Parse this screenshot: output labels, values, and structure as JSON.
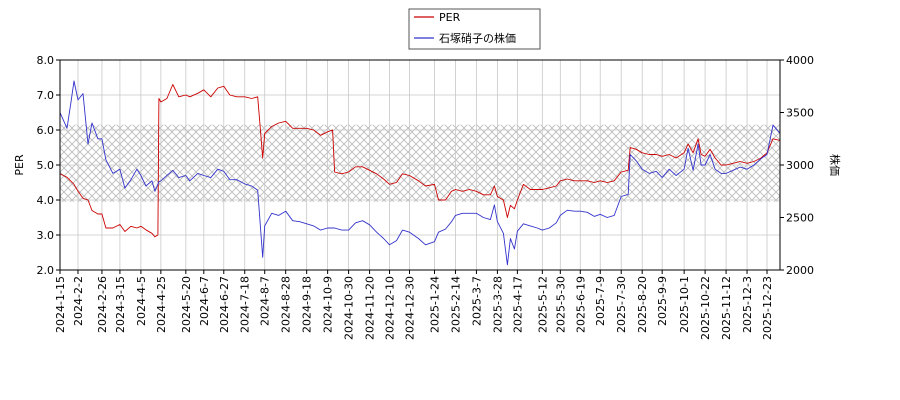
{
  "chart_data": {
    "type": "line",
    "legend": {
      "placement": "top-center",
      "entries": [
        {
          "name": "PER",
          "color": "#cc0000"
        },
        {
          "name": "石塚硝子の株価",
          "color": "#3333cc"
        }
      ]
    },
    "left_axis": {
      "label": "PER",
      "ylim": [
        2.0,
        8.0
      ],
      "ticks": [
        "2.0",
        "3.0",
        "4.0",
        "5.0",
        "6.0",
        "7.0",
        "8.0"
      ]
    },
    "right_axis": {
      "label": "株価",
      "ylim": [
        2000,
        4000
      ],
      "ticks": [
        "2000",
        "2500",
        "3000",
        "3500",
        "4000"
      ]
    },
    "x_axis": {
      "start": "2024-01-15",
      "end": "2026-01-05",
      "tick_labels": [
        "2024-1-15",
        "2024-2-2",
        "2024-2-26",
        "2024-3-15",
        "2024-4-5",
        "2024-4-25",
        "2024-5-20",
        "2024-6-7",
        "2024-6-27",
        "2024-7-18",
        "2024-8-7",
        "2024-8-28",
        "2024-9-18",
        "2024-10-9",
        "2024-10-30",
        "2024-11-20",
        "2024-12-10",
        "2024-12-30",
        "2025-1-24",
        "2025-2-14",
        "2025-3-7",
        "2025-3-28",
        "2025-4-17",
        "2025-5-12",
        "2025-5-30",
        "2025-6-19",
        "2025-7-9",
        "2025-7-30",
        "2025-8-20",
        "2025-9-9",
        "2025-10-1",
        "2025-10-22",
        "2025-11-12",
        "2025-12-3",
        "2025-12-23"
      ]
    },
    "band": {
      "ymin": 3.95,
      "ymax": 6.15,
      "pattern": "crosshatch"
    },
    "grid": true,
    "series": [
      {
        "name": "PER",
        "axis": "left",
        "color": "#cc0000",
        "points": [
          [
            "2024-01-15",
            4.75
          ],
          [
            "2024-01-22",
            4.65
          ],
          [
            "2024-01-29",
            4.45
          ],
          [
            "2024-02-02",
            4.25
          ],
          [
            "2024-02-07",
            4.05
          ],
          [
            "2024-02-12",
            4.0
          ],
          [
            "2024-02-16",
            3.7
          ],
          [
            "2024-02-22",
            3.6
          ],
          [
            "2024-02-26",
            3.6
          ],
          [
            "2024-03-01",
            3.2
          ],
          [
            "2024-03-08",
            3.2
          ],
          [
            "2024-03-15",
            3.3
          ],
          [
            "2024-03-20",
            3.1
          ],
          [
            "2024-03-26",
            3.25
          ],
          [
            "2024-04-01",
            3.2
          ],
          [
            "2024-04-05",
            3.25
          ],
          [
            "2024-04-10",
            3.15
          ],
          [
            "2024-04-16",
            3.05
          ],
          [
            "2024-04-19",
            2.95
          ],
          [
            "2024-04-22",
            3.0
          ],
          [
            "2024-04-23",
            6.9
          ],
          [
            "2024-04-25",
            6.8
          ],
          [
            "2024-05-01",
            6.9
          ],
          [
            "2024-05-07",
            7.3
          ],
          [
            "2024-05-13",
            6.95
          ],
          [
            "2024-05-20",
            7.0
          ],
          [
            "2024-05-24",
            6.95
          ],
          [
            "2024-06-01",
            7.05
          ],
          [
            "2024-06-07",
            7.15
          ],
          [
            "2024-06-14",
            6.95
          ],
          [
            "2024-06-21",
            7.2
          ],
          [
            "2024-06-27",
            7.25
          ],
          [
            "2024-07-03",
            7.0
          ],
          [
            "2024-07-10",
            6.95
          ],
          [
            "2024-07-18",
            6.95
          ],
          [
            "2024-07-25",
            6.9
          ],
          [
            "2024-07-31",
            6.95
          ],
          [
            "2024-08-05",
            5.2
          ],
          [
            "2024-08-07",
            5.9
          ],
          [
            "2024-08-14",
            6.1
          ],
          [
            "2024-08-21",
            6.2
          ],
          [
            "2024-08-28",
            6.25
          ],
          [
            "2024-09-04",
            6.05
          ],
          [
            "2024-09-11",
            6.05
          ],
          [
            "2024-09-18",
            6.05
          ],
          [
            "2024-09-25",
            6.0
          ],
          [
            "2024-10-02",
            5.85
          ],
          [
            "2024-10-09",
            5.95
          ],
          [
            "2024-10-14",
            6.0
          ],
          [
            "2024-10-16",
            4.8
          ],
          [
            "2024-10-23",
            4.75
          ],
          [
            "2024-10-30",
            4.8
          ],
          [
            "2024-11-06",
            4.95
          ],
          [
            "2024-11-13",
            4.95
          ],
          [
            "2024-11-20",
            4.85
          ],
          [
            "2024-11-27",
            4.75
          ],
          [
            "2024-12-04",
            4.6
          ],
          [
            "2024-12-10",
            4.45
          ],
          [
            "2024-12-17",
            4.5
          ],
          [
            "2024-12-23",
            4.75
          ],
          [
            "2024-12-30",
            4.7
          ],
          [
            "2025-01-08",
            4.55
          ],
          [
            "2025-01-15",
            4.4
          ],
          [
            "2025-01-24",
            4.45
          ],
          [
            "2025-01-28",
            4.0
          ],
          [
            "2025-02-04",
            4.0
          ],
          [
            "2025-02-10",
            4.25
          ],
          [
            "2025-02-14",
            4.3
          ],
          [
            "2025-02-21",
            4.25
          ],
          [
            "2025-02-28",
            4.3
          ],
          [
            "2025-03-07",
            4.25
          ],
          [
            "2025-03-14",
            4.15
          ],
          [
            "2025-03-21",
            4.15
          ],
          [
            "2025-03-25",
            4.4
          ],
          [
            "2025-03-28",
            4.1
          ],
          [
            "2025-04-03",
            4.0
          ],
          [
            "2025-04-07",
            3.5
          ],
          [
            "2025-04-10",
            3.85
          ],
          [
            "2025-04-14",
            3.75
          ],
          [
            "2025-04-17",
            4.0
          ],
          [
            "2025-04-23",
            4.45
          ],
          [
            "2025-04-30",
            4.3
          ],
          [
            "2025-05-07",
            4.3
          ],
          [
            "2025-05-12",
            4.3
          ],
          [
            "2025-05-19",
            4.35
          ],
          [
            "2025-05-26",
            4.4
          ],
          [
            "2025-05-30",
            4.55
          ],
          [
            "2025-06-06",
            4.6
          ],
          [
            "2025-06-13",
            4.55
          ],
          [
            "2025-06-19",
            4.55
          ],
          [
            "2025-06-26",
            4.55
          ],
          [
            "2025-07-03",
            4.5
          ],
          [
            "2025-07-09",
            4.55
          ],
          [
            "2025-07-16",
            4.5
          ],
          [
            "2025-07-23",
            4.55
          ],
          [
            "2025-07-30",
            4.8
          ],
          [
            "2025-08-06",
            4.85
          ],
          [
            "2025-08-08",
            5.5
          ],
          [
            "2025-08-14",
            5.45
          ],
          [
            "2025-08-20",
            5.35
          ],
          [
            "2025-08-27",
            5.3
          ],
          [
            "2025-09-03",
            5.3
          ],
          [
            "2025-09-09",
            5.25
          ],
          [
            "2025-09-16",
            5.3
          ],
          [
            "2025-09-23",
            5.2
          ],
          [
            "2025-10-01",
            5.35
          ],
          [
            "2025-10-05",
            5.6
          ],
          [
            "2025-10-10",
            5.35
          ],
          [
            "2025-10-15",
            5.75
          ],
          [
            "2025-10-18",
            5.3
          ],
          [
            "2025-10-22",
            5.25
          ],
          [
            "2025-10-27",
            5.45
          ],
          [
            "2025-11-01",
            5.2
          ],
          [
            "2025-11-07",
            5.0
          ],
          [
            "2025-11-12",
            5.0
          ],
          [
            "2025-11-19",
            5.05
          ],
          [
            "2025-11-26",
            5.1
          ],
          [
            "2025-12-03",
            5.05
          ],
          [
            "2025-12-10",
            5.1
          ],
          [
            "2025-12-17",
            5.2
          ],
          [
            "2025-12-23",
            5.35
          ],
          [
            "2025-12-29",
            5.75
          ],
          [
            "2026-01-05",
            5.7
          ]
        ]
      },
      {
        "name": "石塚硝子の株価",
        "axis": "right",
        "color": "#3333cc",
        "points": [
          [
            "2024-01-15",
            3500
          ],
          [
            "2024-01-22",
            3350
          ],
          [
            "2024-01-26",
            3600
          ],
          [
            "2024-01-29",
            3800
          ],
          [
            "2024-02-02",
            3620
          ],
          [
            "2024-02-07",
            3680
          ],
          [
            "2024-02-12",
            3200
          ],
          [
            "2024-02-16",
            3400
          ],
          [
            "2024-02-22",
            3250
          ],
          [
            "2024-02-26",
            3250
          ],
          [
            "2024-03-01",
            3050
          ],
          [
            "2024-03-08",
            2920
          ],
          [
            "2024-03-15",
            2960
          ],
          [
            "2024-03-20",
            2780
          ],
          [
            "2024-03-26",
            2860
          ],
          [
            "2024-04-01",
            2960
          ],
          [
            "2024-04-05",
            2900
          ],
          [
            "2024-04-10",
            2800
          ],
          [
            "2024-04-16",
            2850
          ],
          [
            "2024-04-19",
            2750
          ],
          [
            "2024-04-23",
            2840
          ],
          [
            "2024-04-25",
            2850
          ],
          [
            "2024-05-01",
            2900
          ],
          [
            "2024-05-07",
            2950
          ],
          [
            "2024-05-13",
            2880
          ],
          [
            "2024-05-20",
            2900
          ],
          [
            "2024-05-24",
            2850
          ],
          [
            "2024-06-01",
            2920
          ],
          [
            "2024-06-07",
            2900
          ],
          [
            "2024-06-14",
            2880
          ],
          [
            "2024-06-21",
            2960
          ],
          [
            "2024-06-27",
            2940
          ],
          [
            "2024-07-03",
            2860
          ],
          [
            "2024-07-10",
            2860
          ],
          [
            "2024-07-18",
            2820
          ],
          [
            "2024-07-25",
            2800
          ],
          [
            "2024-07-31",
            2760
          ],
          [
            "2024-08-05",
            2120
          ],
          [
            "2024-08-07",
            2420
          ],
          [
            "2024-08-14",
            2540
          ],
          [
            "2024-08-21",
            2520
          ],
          [
            "2024-08-28",
            2560
          ],
          [
            "2024-09-04",
            2470
          ],
          [
            "2024-09-11",
            2460
          ],
          [
            "2024-09-18",
            2440
          ],
          [
            "2024-09-25",
            2420
          ],
          [
            "2024-10-02",
            2380
          ],
          [
            "2024-10-09",
            2400
          ],
          [
            "2024-10-16",
            2400
          ],
          [
            "2024-10-23",
            2380
          ],
          [
            "2024-10-30",
            2380
          ],
          [
            "2024-11-06",
            2450
          ],
          [
            "2024-11-13",
            2470
          ],
          [
            "2024-11-20",
            2430
          ],
          [
            "2024-11-27",
            2360
          ],
          [
            "2024-12-04",
            2300
          ],
          [
            "2024-12-10",
            2240
          ],
          [
            "2024-12-17",
            2280
          ],
          [
            "2024-12-23",
            2380
          ],
          [
            "2024-12-30",
            2360
          ],
          [
            "2025-01-08",
            2300
          ],
          [
            "2025-01-15",
            2240
          ],
          [
            "2025-01-24",
            2270
          ],
          [
            "2025-01-28",
            2360
          ],
          [
            "2025-02-04",
            2390
          ],
          [
            "2025-02-10",
            2460
          ],
          [
            "2025-02-14",
            2520
          ],
          [
            "2025-02-21",
            2540
          ],
          [
            "2025-02-28",
            2540
          ],
          [
            "2025-03-07",
            2540
          ],
          [
            "2025-03-14",
            2500
          ],
          [
            "2025-03-21",
            2480
          ],
          [
            "2025-03-25",
            2620
          ],
          [
            "2025-03-28",
            2460
          ],
          [
            "2025-04-03",
            2350
          ],
          [
            "2025-04-07",
            2050
          ],
          [
            "2025-04-10",
            2300
          ],
          [
            "2025-04-14",
            2200
          ],
          [
            "2025-04-17",
            2370
          ],
          [
            "2025-04-23",
            2440
          ],
          [
            "2025-04-30",
            2420
          ],
          [
            "2025-05-07",
            2400
          ],
          [
            "2025-05-12",
            2380
          ],
          [
            "2025-05-19",
            2400
          ],
          [
            "2025-05-26",
            2450
          ],
          [
            "2025-05-30",
            2520
          ],
          [
            "2025-06-06",
            2570
          ],
          [
            "2025-06-13",
            2560
          ],
          [
            "2025-06-19",
            2560
          ],
          [
            "2025-06-26",
            2550
          ],
          [
            "2025-07-03",
            2510
          ],
          [
            "2025-07-09",
            2530
          ],
          [
            "2025-07-16",
            2500
          ],
          [
            "2025-07-23",
            2520
          ],
          [
            "2025-07-30",
            2700
          ],
          [
            "2025-08-06",
            2720
          ],
          [
            "2025-08-08",
            3100
          ],
          [
            "2025-08-14",
            3040
          ],
          [
            "2025-08-20",
            2960
          ],
          [
            "2025-08-27",
            2920
          ],
          [
            "2025-09-03",
            2940
          ],
          [
            "2025-09-09",
            2880
          ],
          [
            "2025-09-16",
            2960
          ],
          [
            "2025-09-23",
            2900
          ],
          [
            "2025-10-01",
            2960
          ],
          [
            "2025-10-05",
            3160
          ],
          [
            "2025-10-10",
            2950
          ],
          [
            "2025-10-15",
            3200
          ],
          [
            "2025-10-18",
            3000
          ],
          [
            "2025-10-22",
            3000
          ],
          [
            "2025-10-27",
            3100
          ],
          [
            "2025-11-01",
            2960
          ],
          [
            "2025-11-07",
            2920
          ],
          [
            "2025-11-12",
            2920
          ],
          [
            "2025-11-19",
            2950
          ],
          [
            "2025-11-26",
            2980
          ],
          [
            "2025-12-03",
            2960
          ],
          [
            "2025-12-10",
            3000
          ],
          [
            "2025-12-17",
            3060
          ],
          [
            "2025-12-23",
            3100
          ],
          [
            "2025-12-29",
            3380
          ],
          [
            "2026-01-05",
            3300
          ]
        ]
      }
    ]
  }
}
